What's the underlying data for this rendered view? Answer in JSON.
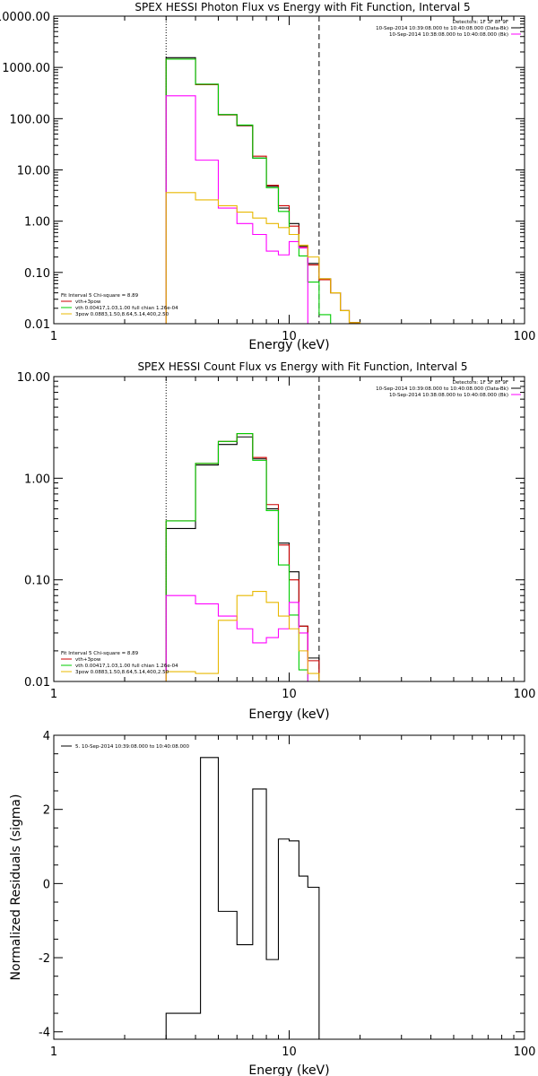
{
  "chart_data": [
    {
      "type": "line",
      "title": "SPEX HESSI Photon Flux vs Energy with Fit Function, Interval 5",
      "xlabel": "Energy (keV)",
      "ylabel": "",
      "xscale": "log",
      "yscale": "log",
      "xlim": [
        1,
        100
      ],
      "ylim": [
        0.01,
        10000
      ],
      "xticks": [
        {
          "v": 1,
          "label": "1"
        },
        {
          "v": 10,
          "label": "10"
        },
        {
          "v": 100,
          "label": "100"
        }
      ],
      "yticks": [
        {
          "v": 10000,
          "label": "10000.00"
        },
        {
          "v": 1000,
          "label": "1000.00"
        },
        {
          "v": 100,
          "label": "100.00"
        },
        {
          "v": 10,
          "label": "10.00"
        },
        {
          "v": 1,
          "label": "1.00"
        },
        {
          "v": 0.1,
          "label": "0.10"
        },
        {
          "v": 0.01,
          "label": "0.01"
        }
      ],
      "vlines": [
        {
          "x": 3.0,
          "style": "dotted"
        },
        {
          "x": 13.4,
          "style": "dashed"
        }
      ],
      "legend_top": [
        "Detectors: 1F 3F 8F 9F",
        "10-Sep-2014 10:39:08.000 to 10:40:08.000 (Data-Bk)",
        "10-Sep-2014 10:38:08.000 to 10:40:08.000 (Bk)"
      ],
      "legend_top_colors": [
        "#ffffff",
        "#000000",
        "#ff00ff"
      ],
      "legend_bottom": [
        "Fit Interval 5   Chi-square = 8.89",
        "vth+3pow",
        "vth 0.00417,1.03,1.00  full chian 1.26e-04",
        "3pow 0.0883,1.50,8.64,5.14,400,2.50"
      ],
      "legend_bottom_colors": [
        "#ffffff",
        "#cc0000",
        "#00cc00",
        "#e8b800"
      ],
      "edges": [
        3.0,
        4.0,
        5.0,
        6.0,
        7.0,
        8.0,
        9.0,
        10.0,
        11.0,
        12.0,
        13.4,
        15.0,
        16.5,
        18.0,
        20.0
      ],
      "series": [
        {
          "color": "#000000",
          "values": [
            1550,
            470,
            120,
            73,
            17,
            4.8,
            1.8,
            0.9,
            0.33,
            0.15,
            0.075,
            0.04,
            0.018,
            0.0105
          ]
        },
        {
          "color": "#cc0000",
          "values": [
            1450,
            460,
            118,
            74,
            18.5,
            5.0,
            2.0,
            0.8,
            0.31,
            0.14,
            0.072,
            0.04,
            0.018,
            0.0105
          ]
        },
        {
          "color": "#00cc00",
          "values": [
            1450,
            470,
            120,
            75,
            17,
            4.5,
            1.55,
            0.55,
            0.21,
            0.065,
            0.015
          ]
        },
        {
          "color": "#ff00ff",
          "values": [
            280,
            15.5,
            1.8,
            0.9,
            0.55,
            0.26,
            0.22,
            0.4,
            0.3
          ]
        },
        {
          "color": "#e8b800",
          "values": [
            3.6,
            2.6,
            2.0,
            1.5,
            1.15,
            0.9,
            0.75,
            0.55,
            0.34,
            0.2,
            0.075,
            0.04,
            0.018,
            0.0105
          ]
        }
      ]
    },
    {
      "type": "line",
      "title": "SPEX HESSI Count Flux vs Energy with Fit Function, Interval 5",
      "xlabel": "Energy (keV)",
      "ylabel": "",
      "xscale": "log",
      "yscale": "log",
      "xlim": [
        1,
        100
      ],
      "ylim": [
        0.01,
        10
      ],
      "xticks": [
        {
          "v": 1,
          "label": "1"
        },
        {
          "v": 10,
          "label": "10"
        },
        {
          "v": 100,
          "label": "100"
        }
      ],
      "yticks": [
        {
          "v": 10,
          "label": "10.00"
        },
        {
          "v": 1,
          "label": "1.00"
        },
        {
          "v": 0.1,
          "label": "0.10"
        },
        {
          "v": 0.01,
          "label": "0.01"
        }
      ],
      "vlines": [
        {
          "x": 3.0,
          "style": "dotted"
        },
        {
          "x": 13.4,
          "style": "dashed"
        }
      ],
      "legend_top": [
        "Detectors: 1F 3F 8F 9F",
        "10-Sep-2014 10:39:08.000 to 10:40:08.000 (Data-Bk)",
        "10-Sep-2014 10:38:08.000 to 10:40:08.000 (Bk)"
      ],
      "legend_top_colors": [
        "#ffffff",
        "#000000",
        "#ff00ff"
      ],
      "legend_bottom": [
        "Fit Interval 5   Chi-square = 8.89",
        "vth+3pow",
        "vth 0.00417,1.03,1.00  full chian 1.26e-04",
        "3pow 0.0883,1.50,8.64,5.14,400,2.50"
      ],
      "legend_bottom_colors": [
        "#ffffff",
        "#cc0000",
        "#00cc00",
        "#e8b800"
      ],
      "edges": [
        3.0,
        4.0,
        5.0,
        6.0,
        7.0,
        8.0,
        9.0,
        10.0,
        11.0,
        12.0,
        13.4
      ],
      "series": [
        {
          "color": "#000000",
          "values": [
            0.32,
            1.35,
            2.15,
            2.55,
            1.55,
            0.5,
            0.23,
            0.12,
            0.035,
            0.017
          ]
        },
        {
          "color": "#cc0000",
          "values": [
            0.38,
            1.4,
            2.3,
            2.75,
            1.6,
            0.55,
            0.22,
            0.1,
            0.035,
            0.016
          ]
        },
        {
          "color": "#00cc00",
          "values": [
            0.38,
            1.4,
            2.3,
            2.75,
            1.5,
            0.48,
            0.14,
            0.045,
            0.013
          ]
        },
        {
          "color": "#ff00ff",
          "values": [
            0.07,
            0.058,
            0.044,
            0.033,
            0.024,
            0.027,
            0.033,
            0.06,
            0.03
          ]
        },
        {
          "color": "#e8b800",
          "values": [
            0.0125,
            0.012,
            0.04,
            0.07,
            0.077,
            0.06,
            0.044,
            0.033,
            0.02,
            0.012
          ]
        }
      ]
    },
    {
      "type": "line",
      "title": "",
      "xlabel": "Energy (keV)",
      "ylabel": "Normalized Residuals (sigma)",
      "xscale": "log",
      "yscale": "linear",
      "xlim": [
        1,
        100
      ],
      "ylim": [
        -4.2,
        4
      ],
      "xticks": [
        {
          "v": 1,
          "label": "1"
        },
        {
          "v": 10,
          "label": "10"
        },
        {
          "v": 100,
          "label": "100"
        }
      ],
      "yticks": [
        {
          "v": 4,
          "label": "4"
        },
        {
          "v": 2,
          "label": "2"
        },
        {
          "v": 0,
          "label": "0"
        },
        {
          "v": -2,
          "label": "-2"
        },
        {
          "v": -4,
          "label": "-4"
        }
      ],
      "legend": [
        "5. 10-Sep-2014 10:39:08.000 to 10:40:08.000"
      ],
      "edges": [
        3.0,
        4.2,
        5.0,
        6.0,
        7.0,
        8.0,
        9.0,
        10.0,
        11.0,
        12.0,
        13.4
      ],
      "series": [
        {
          "color": "#000000",
          "values": [
            -3.5,
            3.4,
            -0.75,
            -1.65,
            2.55,
            -2.05,
            1.2,
            1.15,
            0.2,
            -0.1
          ]
        }
      ]
    }
  ]
}
